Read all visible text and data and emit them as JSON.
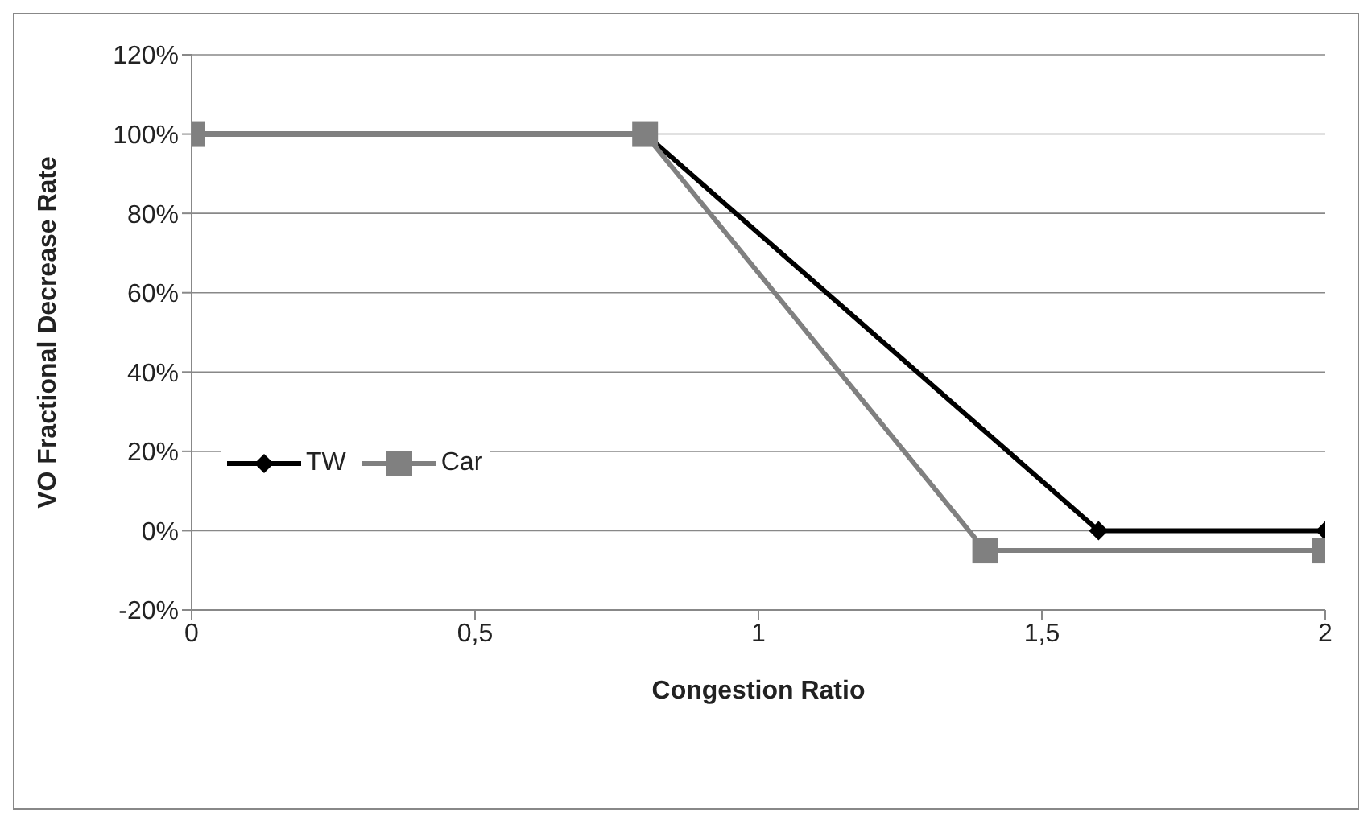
{
  "chart_data": {
    "type": "line",
    "xlabel": "Congestion Ratio",
    "ylabel": "VO Fractional Decrease Rate",
    "series": [
      {
        "name": "TW",
        "color": "#000000",
        "x": [
          0,
          0.8,
          1.6,
          2
        ],
        "values": [
          100,
          100,
          0,
          0
        ],
        "marker": "diamond"
      },
      {
        "name": "Car",
        "color": "#808080",
        "x": [
          0,
          0.8,
          1.4,
          2
        ],
        "values": [
          100,
          100,
          -5,
          -5
        ],
        "marker": "square"
      }
    ],
    "xlim": [
      0,
      2
    ],
    "xticks": [
      0,
      {
        "value": 0.5,
        "label": "0,5"
      },
      1,
      {
        "value": 1.5,
        "label": "1,5"
      },
      2
    ],
    "ylim": [
      -20,
      120
    ],
    "yticks": [
      {
        "value": -20,
        "label": "-20%"
      },
      {
        "value": 0,
        "label": "0%"
      },
      {
        "value": 20,
        "label": "20%"
      },
      {
        "value": 40,
        "label": "40%"
      },
      {
        "value": 60,
        "label": "60%"
      },
      {
        "value": 80,
        "label": "80%"
      },
      {
        "value": 100,
        "label": "100%"
      },
      {
        "value": 120,
        "label": "120%"
      }
    ],
    "grid": "y",
    "legend": "left",
    "line_style": "solid"
  }
}
